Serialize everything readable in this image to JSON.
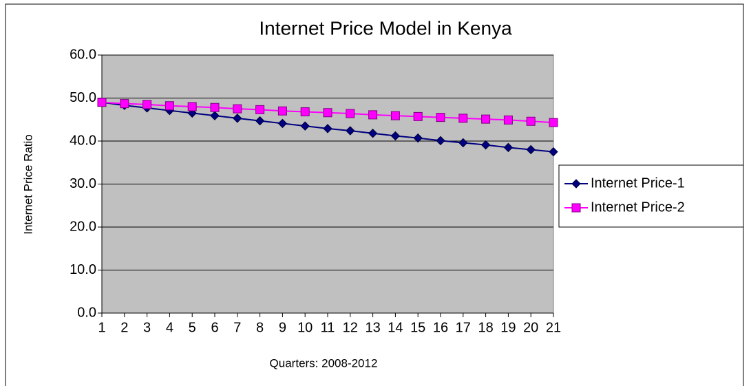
{
  "chart_data": {
    "type": "line",
    "title": "Internet Price Model in Kenya",
    "x_label": "Quarters: 2008-2012",
    "y_label": "Internet Price Ratio",
    "categories": [
      "1",
      "2",
      "3",
      "4",
      "5",
      "6",
      "7",
      "8",
      "9",
      "10",
      "11",
      "12",
      "13",
      "14",
      "15",
      "16",
      "17",
      "18",
      "19",
      "20",
      "21"
    ],
    "series": [
      {
        "name": "Internet Price-1",
        "color": "#000080",
        "marker": "diamond",
        "values": [
          49.0,
          48.3,
          47.7,
          47.1,
          46.5,
          45.9,
          45.3,
          44.7,
          44.1,
          43.5,
          42.9,
          42.4,
          41.8,
          41.2,
          40.7,
          40.1,
          39.6,
          39.1,
          38.5,
          38.0,
          37.5
        ]
      },
      {
        "name": "Internet Price-2",
        "color": "#ff00ff",
        "marker": "square",
        "values": [
          49.0,
          48.7,
          48.5,
          48.2,
          48.0,
          47.8,
          47.5,
          47.3,
          47.0,
          46.8,
          46.6,
          46.4,
          46.1,
          45.9,
          45.7,
          45.5,
          45.3,
          45.1,
          44.9,
          44.6,
          44.3
        ]
      }
    ],
    "ylim": [
      0,
      60
    ],
    "yticks": [
      {
        "value": 0,
        "label": "0.0"
      },
      {
        "value": 10,
        "label": "10.0"
      },
      {
        "value": 20,
        "label": "20.0"
      },
      {
        "value": 30,
        "label": "30.0"
      },
      {
        "value": 40,
        "label": "40.0"
      },
      {
        "value": 50,
        "label": "50.0"
      },
      {
        "value": 60,
        "label": "60.0"
      }
    ],
    "grid": true,
    "legend": "right",
    "plot_background": "#c0c0c0"
  }
}
